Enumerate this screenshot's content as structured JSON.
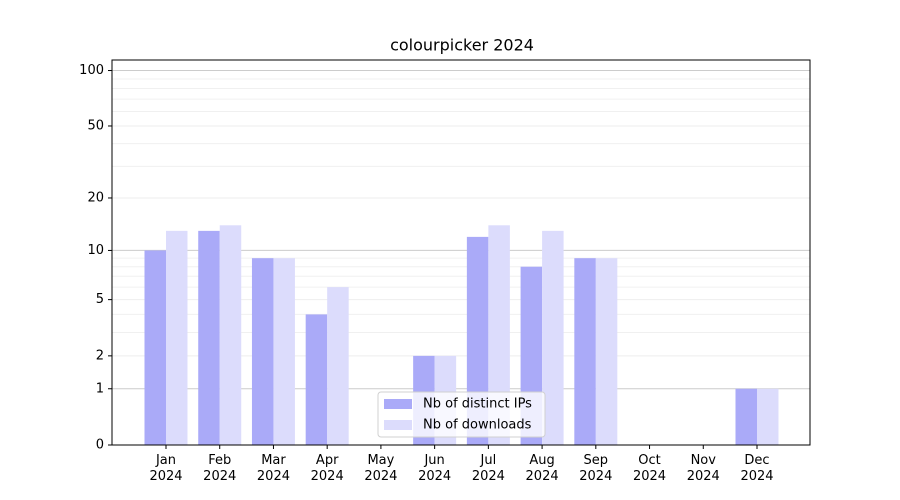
{
  "chart_data": {
    "type": "bar",
    "title": "colourpicker 2024",
    "categories": [
      "Jan\n2024",
      "Feb\n2024",
      "Mar\n2024",
      "Apr\n2024",
      "May\n2024",
      "Jun\n2024",
      "Jul\n2024",
      "Aug\n2024",
      "Sep\n2024",
      "Oct\n2024",
      "Nov\n2024",
      "Dec\n2024"
    ],
    "series": [
      {
        "name": "Nb of distinct IPs",
        "color": "#aaaaf8",
        "values": [
          10,
          13,
          9,
          4,
          0,
          2,
          12,
          8,
          9,
          0,
          0,
          1
        ]
      },
      {
        "name": "Nb of downloads",
        "color": "#dcdcfc",
        "values": [
          13,
          14,
          9,
          6,
          0,
          2,
          14,
          13,
          9,
          0,
          0,
          1
        ]
      }
    ],
    "yscale": "symlog",
    "ylim": [
      0,
      114
    ],
    "yticks": [
      0,
      1,
      2,
      5,
      10,
      20,
      50,
      100
    ],
    "yminorticks": [
      3,
      4,
      6,
      7,
      8,
      9,
      30,
      40,
      60,
      70,
      80,
      90
    ],
    "grid": true,
    "legend": "lower center"
  }
}
